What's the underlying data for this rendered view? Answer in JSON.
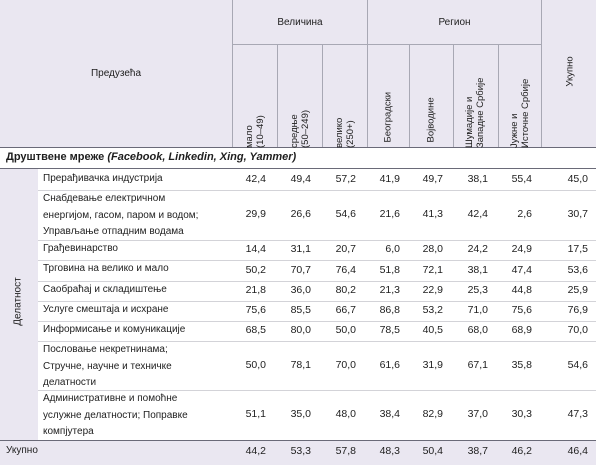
{
  "header": {
    "enterprises": "Предузећа",
    "size_group": "Величина",
    "region_group": "Регион",
    "total": "Укупно",
    "cols": [
      "мало\n(10–49)",
      "средње\n(50–249)",
      "велико\n(250+)",
      "Београдски",
      "Војводине",
      "Шумадије и\nЗападне Србије",
      "Јужне и\nИсточне Србије"
    ]
  },
  "section": {
    "title": "Друштвене мреже",
    "subtitle": "(Facebook, Linkedin, Xing, Yammer)"
  },
  "side_label": "Делатност",
  "rows": [
    {
      "label": "Прерађивачка индустрија",
      "values": [
        "42,4",
        "49,4",
        "57,2",
        "41,9",
        "49,7",
        "38,1",
        "55,4",
        "45,0"
      ]
    },
    {
      "label": "Снабдевање електричном\nенергијом, гасом, паром и водом;\nУправљање отпадним водама",
      "values": [
        "29,9",
        "26,6",
        "54,6",
        "21,6",
        "41,3",
        "42,4",
        "2,6",
        "30,7"
      ]
    },
    {
      "label": "Грађевинарство",
      "values": [
        "14,4",
        "31,1",
        "20,7",
        "6,0",
        "28,0",
        "24,2",
        "24,9",
        "17,5"
      ]
    },
    {
      "label": "Трговина на велико и мало",
      "values": [
        "50,2",
        "70,7",
        "76,4",
        "51,8",
        "72,1",
        "38,1",
        "47,4",
        "53,6"
      ]
    },
    {
      "label": "Саобраћај и складиштење",
      "values": [
        "21,8",
        "36,0",
        "80,2",
        "21,3",
        "22,9",
        "25,3",
        "44,8",
        "25,9"
      ]
    },
    {
      "label": "Услуге смештаја и исхране",
      "values": [
        "75,6",
        "85,5",
        "66,7",
        "86,8",
        "53,2",
        "71,0",
        "75,6",
        "76,9"
      ]
    },
    {
      "label": "Информисање и комуникације",
      "values": [
        "68,5",
        "80,0",
        "50,0",
        "78,5",
        "40,5",
        "68,0",
        "68,9",
        "70,0"
      ]
    },
    {
      "label": "Пословање некретнинама;\nСтручне, научне и техничке\nделатности",
      "values": [
        "50,0",
        "78,1",
        "70,0",
        "61,6",
        "31,9",
        "67,1",
        "35,8",
        "54,6"
      ]
    },
    {
      "label": "Административне и помоћне\nуслужне делатности; Поправке\nкомпјутера",
      "values": [
        "51,1",
        "35,0",
        "48,0",
        "38,4",
        "82,9",
        "37,0",
        "30,3",
        "47,3"
      ]
    }
  ],
  "total_row": {
    "label": "Укупно",
    "values": [
      "44,2",
      "53,3",
      "57,8",
      "48,3",
      "50,4",
      "38,7",
      "46,2",
      "46,4"
    ]
  }
}
